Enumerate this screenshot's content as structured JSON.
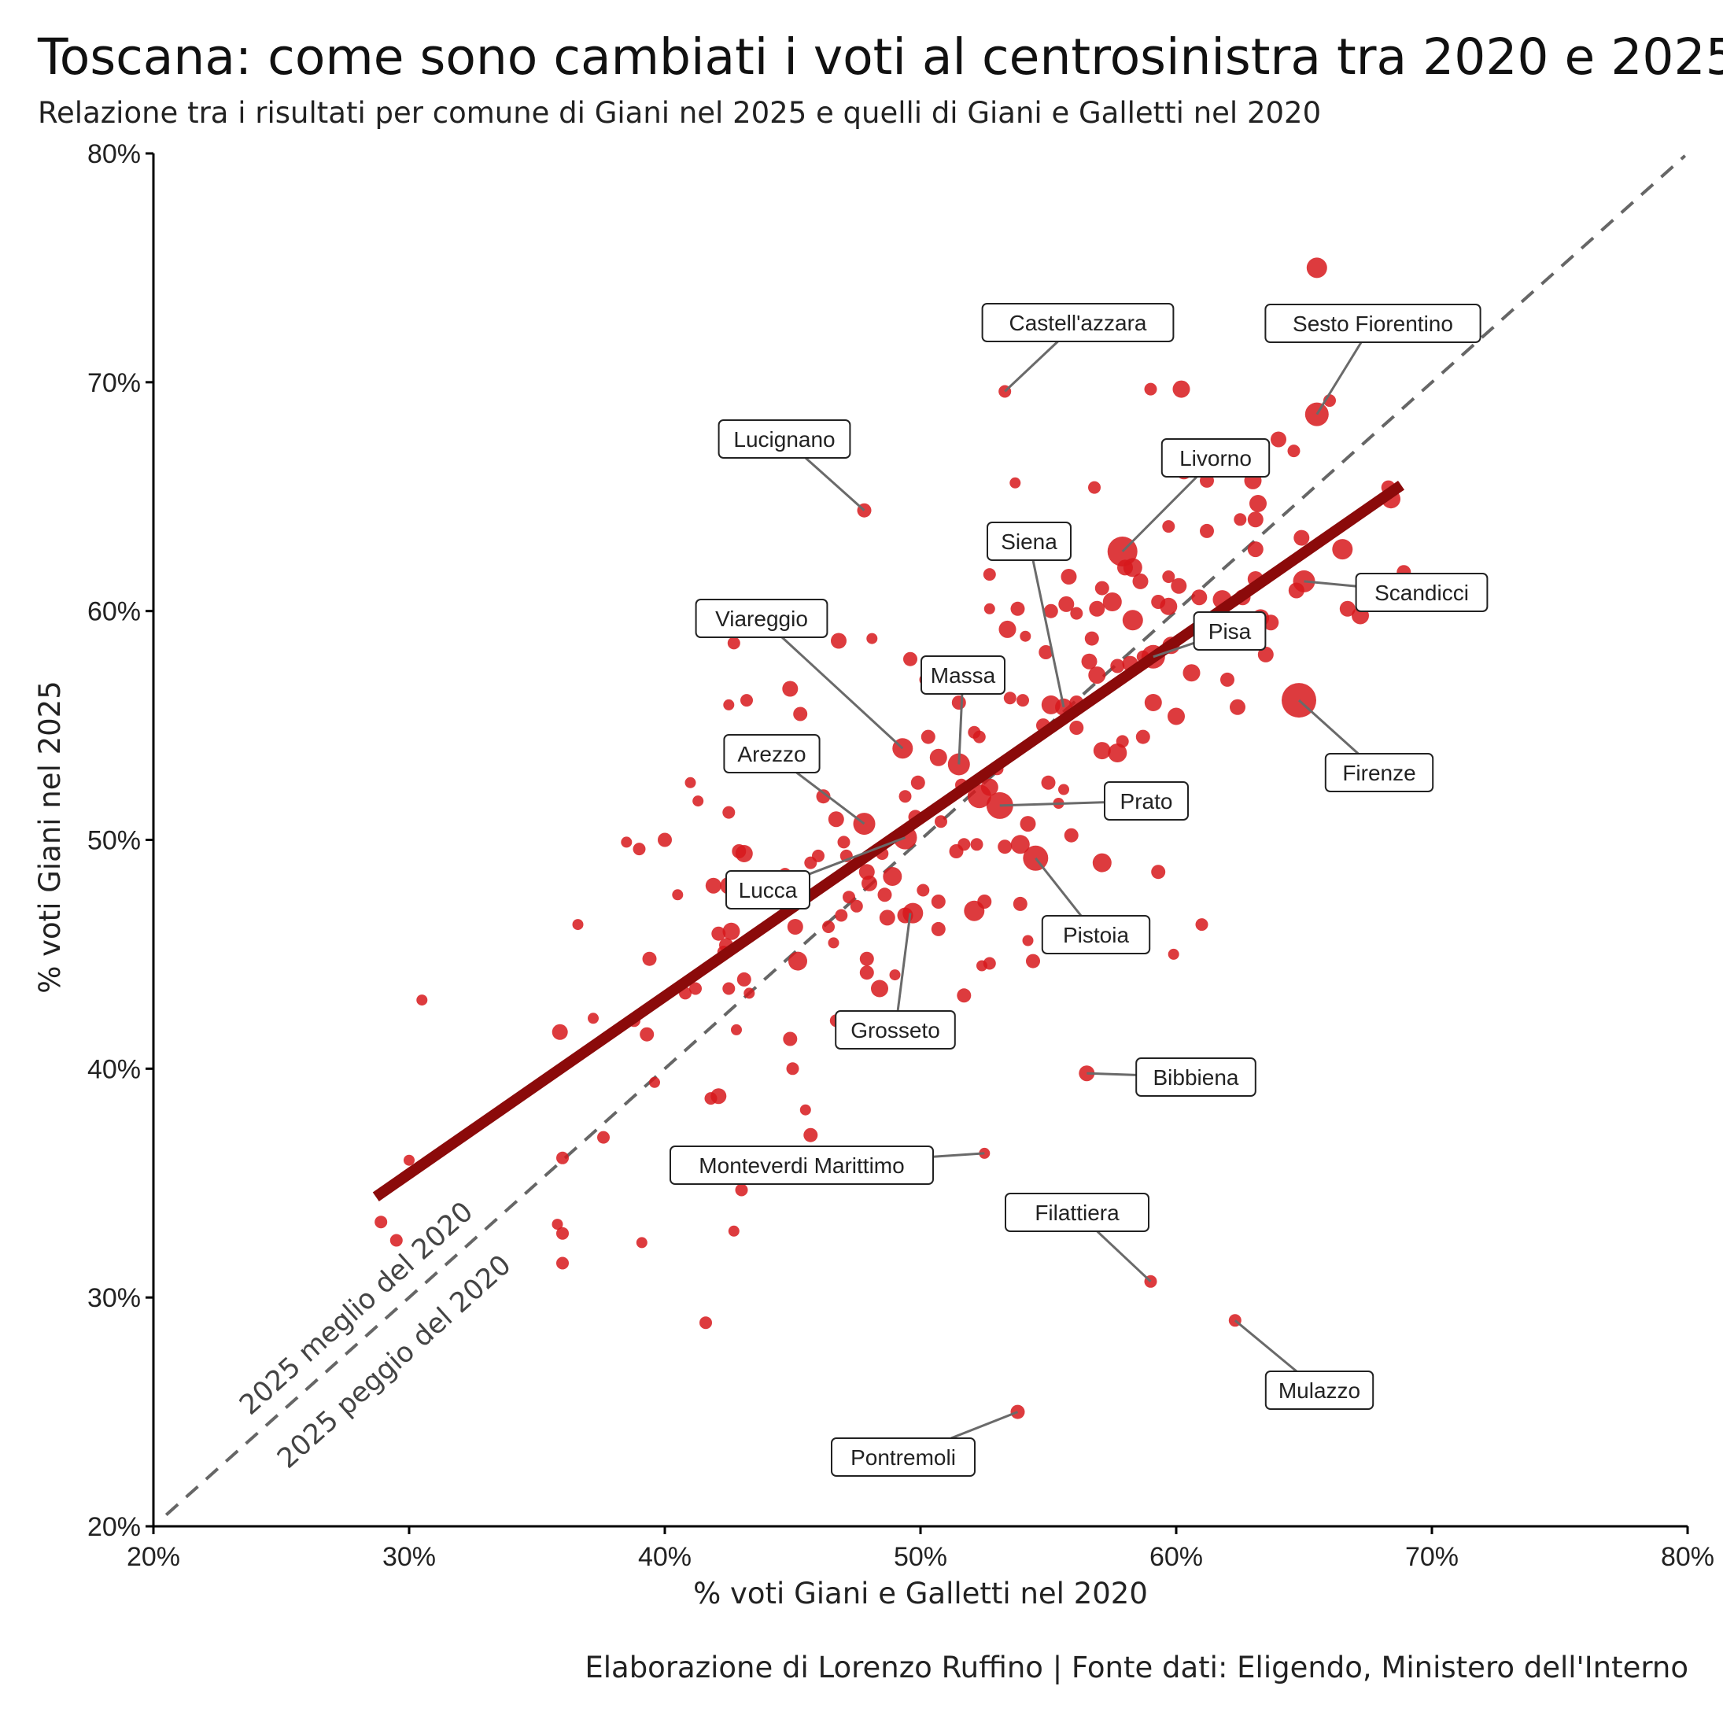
{
  "title": "Toscana: come sono cambiati i voti al centrosinistra tra 2020 e 2025",
  "subtitle": "Relazione tra i risultati per comune di Giani nel 2025 e quelli di Giani e Galletti nel 2020",
  "caption": "Elaborazione di Lorenzo Ruffino | Fonte dati: Eligendo, Ministero dell'Interno",
  "chart_data": {
    "type": "scatter",
    "xlabel": "% voti Giani e Galletti nel 2020",
    "ylabel": "% voti Giani nel 2025",
    "xlim": [
      20,
      80
    ],
    "ylim": [
      20,
      80
    ],
    "x_ticks": [
      "20%",
      "30%",
      "40%",
      "50%",
      "60%",
      "70%",
      "80%"
    ],
    "y_ticks": [
      "20%",
      "30%",
      "40%",
      "50%",
      "60%",
      "70%",
      "80%"
    ],
    "grid": false,
    "reference_line": {
      "style": "dashed",
      "equation": "y = x",
      "color": "#666666"
    },
    "region_labels": {
      "above": "2025 meglio del 2020",
      "below": "2025 peggio del 2020"
    },
    "trend_line": {
      "x": [
        28.7,
        68.8
      ],
      "y": [
        34.4,
        65.5
      ],
      "color": "#8b0a0a"
    },
    "point_color": "#d7191c",
    "labeled_points": [
      {
        "name": "Castell'azzara",
        "x": 53.3,
        "y": 69.6
      },
      {
        "name": "Sesto Fiorentino",
        "x": 65.5,
        "y": 68.6
      },
      {
        "name": "Lucignano",
        "x": 47.8,
        "y": 64.4
      },
      {
        "name": "Livorno",
        "x": 57.9,
        "y": 62.6
      },
      {
        "name": "Siena",
        "x": 55.6,
        "y": 55.8
      },
      {
        "name": "Scandicci",
        "x": 65.0,
        "y": 61.3
      },
      {
        "name": "Viareggio",
        "x": 49.3,
        "y": 54.0
      },
      {
        "name": "Pisa",
        "x": 59.1,
        "y": 58.0
      },
      {
        "name": "Massa",
        "x": 51.5,
        "y": 53.3
      },
      {
        "name": "Firenze",
        "x": 64.8,
        "y": 56.1
      },
      {
        "name": "Arezzo",
        "x": 47.8,
        "y": 50.7
      },
      {
        "name": "Prato",
        "x": 53.1,
        "y": 51.5
      },
      {
        "name": "Lucca",
        "x": 49.4,
        "y": 50.1
      },
      {
        "name": "Pistoia",
        "x": 54.5,
        "y": 49.2
      },
      {
        "name": "Grosseto",
        "x": 49.6,
        "y": 46.8
      },
      {
        "name": "Bibbiena",
        "x": 56.5,
        "y": 39.8
      },
      {
        "name": "Monteverdi Marittimo",
        "x": 52.5,
        "y": 36.3
      },
      {
        "name": "Filattiera",
        "x": 59.0,
        "y": 30.7
      },
      {
        "name": "Mulazzo",
        "x": 62.3,
        "y": 29.0
      },
      {
        "name": "Pontremoli",
        "x": 53.8,
        "y": 25.0
      }
    ],
    "points": [
      [
        65.5,
        75.0,
        13
      ],
      [
        53.3,
        69.6,
        8
      ],
      [
        59.0,
        69.7,
        8
      ],
      [
        60.2,
        69.7,
        11
      ],
      [
        65.5,
        68.6,
        15
      ],
      [
        66.0,
        69.2,
        8
      ],
      [
        64.0,
        67.5,
        10
      ],
      [
        64.6,
        67.0,
        8
      ],
      [
        47.8,
        64.4,
        9
      ],
      [
        53.7,
        65.6,
        7
      ],
      [
        56.8,
        65.4,
        8
      ],
      [
        60.3,
        66.1,
        10
      ],
      [
        61.2,
        65.7,
        9
      ],
      [
        63.0,
        65.7,
        11
      ],
      [
        63.2,
        64.7,
        11
      ],
      [
        59.7,
        63.7,
        8
      ],
      [
        61.2,
        63.5,
        9
      ],
      [
        62.5,
        64.0,
        8
      ],
      [
        63.1,
        64.0,
        10
      ],
      [
        57.9,
        62.6,
        19
      ],
      [
        58.3,
        61.9,
        12
      ],
      [
        63.1,
        62.7,
        10
      ],
      [
        64.9,
        63.2,
        10
      ],
      [
        66.5,
        62.7,
        13
      ],
      [
        68.3,
        65.4,
        9
      ],
      [
        68.4,
        64.9,
        12
      ],
      [
        52.7,
        61.6,
        8
      ],
      [
        55.8,
        61.5,
        10
      ],
      [
        57.1,
        61.0,
        9
      ],
      [
        58.0,
        61.9,
        10
      ],
      [
        58.6,
        61.3,
        10
      ],
      [
        59.7,
        61.5,
        8
      ],
      [
        60.1,
        61.1,
        10
      ],
      [
        63.1,
        61.4,
        10
      ],
      [
        65.0,
        61.3,
        14
      ],
      [
        64.7,
        60.9,
        10
      ],
      [
        68.9,
        61.7,
        9
      ],
      [
        52.7,
        60.1,
        7
      ],
      [
        53.4,
        59.2,
        11
      ],
      [
        53.8,
        60.1,
        9
      ],
      [
        54.1,
        58.9,
        7
      ],
      [
        55.1,
        60.0,
        9
      ],
      [
        55.7,
        60.3,
        10
      ],
      [
        56.1,
        59.9,
        8
      ],
      [
        56.9,
        60.1,
        10
      ],
      [
        57.5,
        60.4,
        12
      ],
      [
        58.3,
        59.6,
        13
      ],
      [
        59.3,
        60.4,
        9
      ],
      [
        59.7,
        60.2,
        11
      ],
      [
        60.9,
        60.6,
        10
      ],
      [
        61.8,
        60.5,
        12
      ],
      [
        62.6,
        60.6,
        10
      ],
      [
        63.3,
        59.7,
        11
      ],
      [
        63.7,
        59.5,
        10
      ],
      [
        66.7,
        60.1,
        10
      ],
      [
        67.2,
        59.8,
        11
      ],
      [
        42.7,
        58.6,
        8
      ],
      [
        46.8,
        58.7,
        10
      ],
      [
        48.1,
        58.8,
        7
      ],
      [
        54.9,
        58.2,
        9
      ],
      [
        56.7,
        58.8,
        9
      ],
      [
        58.7,
        58.0,
        8
      ],
      [
        59.1,
        58.0,
        15
      ],
      [
        59.8,
        58.5,
        11
      ],
      [
        60.6,
        57.3,
        11
      ],
      [
        62.0,
        57.0,
        9
      ],
      [
        63.5,
        58.1,
        10
      ],
      [
        44.9,
        56.6,
        10
      ],
      [
        45.3,
        55.5,
        9
      ],
      [
        42.5,
        55.9,
        7
      ],
      [
        43.2,
        56.1,
        8
      ],
      [
        49.6,
        57.9,
        9
      ],
      [
        50.2,
        57.0,
        8
      ],
      [
        51.5,
        56.0,
        9
      ],
      [
        53.5,
        56.2,
        8
      ],
      [
        54.0,
        56.1,
        8
      ],
      [
        55.1,
        55.9,
        12
      ],
      [
        55.6,
        55.8,
        11
      ],
      [
        56.1,
        56.0,
        9
      ],
      [
        56.6,
        57.8,
        10
      ],
      [
        56.9,
        57.2,
        11
      ],
      [
        57.7,
        57.6,
        9
      ],
      [
        58.2,
        57.7,
        10
      ],
      [
        59.1,
        56.0,
        11
      ],
      [
        60.0,
        55.4,
        11
      ],
      [
        62.4,
        55.8,
        10
      ],
      [
        64.8,
        56.1,
        22
      ],
      [
        49.3,
        54.0,
        13
      ],
      [
        50.3,
        54.5,
        9
      ],
      [
        50.7,
        53.6,
        11
      ],
      [
        51.5,
        53.3,
        14
      ],
      [
        52.1,
        54.7,
        8
      ],
      [
        52.3,
        54.5,
        8
      ],
      [
        53.0,
        53.1,
        8
      ],
      [
        54.8,
        55.0,
        9
      ],
      [
        56.1,
        54.9,
        9
      ],
      [
        57.1,
        53.9,
        11
      ],
      [
        57.7,
        53.8,
        12
      ],
      [
        57.9,
        54.3,
        8
      ],
      [
        58.7,
        54.5,
        9
      ],
      [
        41.0,
        52.5,
        7
      ],
      [
        41.3,
        51.7,
        7
      ],
      [
        42.5,
        51.2,
        8
      ],
      [
        46.2,
        51.9,
        9
      ],
      [
        49.9,
        52.5,
        9
      ],
      [
        49.4,
        51.9,
        8
      ],
      [
        51.6,
        52.4,
        8
      ],
      [
        52.7,
        52.3,
        11
      ],
      [
        52.3,
        51.9,
        15
      ],
      [
        53.1,
        51.5,
        17
      ],
      [
        55.0,
        52.5,
        9
      ],
      [
        55.6,
        52.2,
        7
      ],
      [
        55.4,
        51.6,
        7
      ],
      [
        38.5,
        49.9,
        7
      ],
      [
        39.0,
        49.6,
        8
      ],
      [
        40.0,
        50.0,
        9
      ],
      [
        42.9,
        49.5,
        9
      ],
      [
        43.1,
        49.4,
        11
      ],
      [
        45.7,
        49.0,
        8
      ],
      [
        46.7,
        50.9,
        10
      ],
      [
        47.0,
        49.9,
        8
      ],
      [
        47.8,
        50.7,
        14
      ],
      [
        49.4,
        50.1,
        15
      ],
      [
        49.8,
        51.0,
        9
      ],
      [
        50.8,
        50.8,
        8
      ],
      [
        51.4,
        49.5,
        9
      ],
      [
        51.7,
        49.8,
        8
      ],
      [
        52.2,
        49.8,
        8
      ],
      [
        53.3,
        49.7,
        9
      ],
      [
        53.9,
        49.8,
        12
      ],
      [
        54.2,
        50.7,
        10
      ],
      [
        54.5,
        49.2,
        16
      ],
      [
        55.9,
        50.2,
        9
      ],
      [
        57.1,
        49.0,
        12
      ],
      [
        46.0,
        49.3,
        8
      ],
      [
        47.1,
        49.3,
        8
      ],
      [
        48.5,
        49.4,
        8
      ],
      [
        40.5,
        47.6,
        7
      ],
      [
        41.9,
        48.0,
        10
      ],
      [
        42.5,
        48.0,
        11
      ],
      [
        43.4,
        47.9,
        8
      ],
      [
        44.7,
        48.5,
        8
      ],
      [
        47.2,
        47.5,
        8
      ],
      [
        47.9,
        48.6,
        10
      ],
      [
        48.0,
        48.1,
        10
      ],
      [
        48.9,
        48.4,
        12
      ],
      [
        48.6,
        47.6,
        9
      ],
      [
        50.1,
        47.8,
        8
      ],
      [
        50.7,
        47.3,
        9
      ],
      [
        52.5,
        47.3,
        9
      ],
      [
        52.1,
        46.9,
        13
      ],
      [
        53.9,
        47.2,
        9
      ],
      [
        59.3,
        48.6,
        9
      ],
      [
        36.6,
        46.3,
        7
      ],
      [
        42.1,
        45.9,
        9
      ],
      [
        42.4,
        45.4,
        9
      ],
      [
        42.6,
        46.0,
        11
      ],
      [
        45.1,
        46.2,
        10
      ],
      [
        46.4,
        46.2,
        8
      ],
      [
        46.9,
        46.7,
        8
      ],
      [
        47.5,
        47.1,
        8
      ],
      [
        48.7,
        46.6,
        10
      ],
      [
        49.4,
        46.7,
        10
      ],
      [
        49.7,
        46.8,
        13
      ],
      [
        50.7,
        46.1,
        9
      ],
      [
        54.2,
        45.6,
        7
      ],
      [
        61.0,
        46.3,
        8
      ],
      [
        42.3,
        45.1,
        8
      ],
      [
        45.2,
        44.7,
        12
      ],
      [
        46.6,
        45.5,
        7
      ],
      [
        47.9,
        44.8,
        9
      ],
      [
        52.7,
        44.6,
        8
      ],
      [
        52.4,
        44.5,
        7
      ],
      [
        54.4,
        44.7,
        9
      ],
      [
        59.9,
        45.0,
        7
      ],
      [
        39.4,
        44.8,
        9
      ],
      [
        40.8,
        43.3,
        8
      ],
      [
        41.2,
        43.5,
        8
      ],
      [
        43.1,
        43.9,
        9
      ],
      [
        43.3,
        43.3,
        7
      ],
      [
        42.5,
        43.5,
        8
      ],
      [
        47.9,
        44.2,
        9
      ],
      [
        48.4,
        43.5,
        11
      ],
      [
        49.0,
        44.1,
        7
      ],
      [
        51.7,
        43.2,
        9
      ],
      [
        30.5,
        43.0,
        7
      ],
      [
        35.9,
        41.6,
        10
      ],
      [
        37.2,
        42.2,
        7
      ],
      [
        38.8,
        42.1,
        8
      ],
      [
        39.3,
        41.5,
        9
      ],
      [
        42.8,
        41.7,
        7
      ],
      [
        44.9,
        41.3,
        9
      ],
      [
        46.7,
        42.1,
        8
      ],
      [
        45.0,
        40.0,
        8
      ],
      [
        39.6,
        39.4,
        7
      ],
      [
        41.8,
        38.7,
        8
      ],
      [
        42.1,
        38.8,
        10
      ],
      [
        45.5,
        38.2,
        7
      ],
      [
        56.5,
        39.8,
        10
      ],
      [
        37.6,
        37.0,
        8
      ],
      [
        42.2,
        36.4,
        7
      ],
      [
        45.7,
        37.1,
        9
      ],
      [
        52.5,
        36.3,
        7
      ],
      [
        30.0,
        36.0,
        7
      ],
      [
        36.0,
        36.1,
        8
      ],
      [
        43.0,
        34.7,
        8
      ],
      [
        45.2,
        35.7,
        7
      ],
      [
        28.9,
        33.3,
        8
      ],
      [
        29.5,
        32.5,
        8
      ],
      [
        35.8,
        33.2,
        7
      ],
      [
        36.0,
        32.8,
        8
      ],
      [
        42.7,
        32.9,
        7
      ],
      [
        39.1,
        32.4,
        7
      ],
      [
        36.0,
        31.5,
        8
      ],
      [
        59.0,
        30.7,
        8
      ],
      [
        41.6,
        28.9,
        8
      ],
      [
        62.3,
        29.0,
        8
      ],
      [
        53.8,
        25.0,
        9
      ]
    ]
  }
}
